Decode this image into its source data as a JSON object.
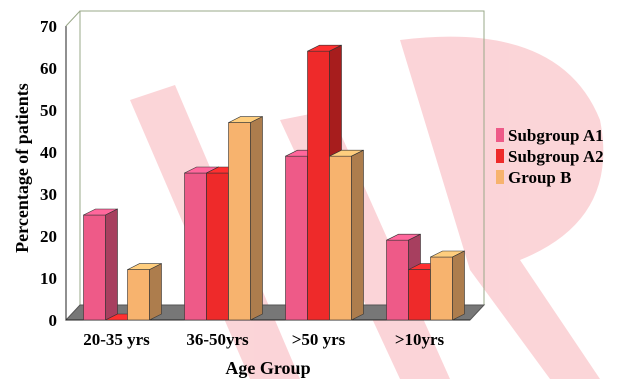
{
  "chart_data": {
    "type": "bar",
    "title": "",
    "xlabel": "Age Group",
    "ylabel": "Percentage of patients",
    "ylim": [
      0,
      70
    ],
    "yticks": [
      0,
      10,
      20,
      30,
      40,
      50,
      60,
      70
    ],
    "grid": false,
    "legend_position": "right",
    "categories": [
      "20-35 yrs",
      "36-50yrs",
      ">50 yrs",
      ">10yrs"
    ],
    "series": [
      {
        "name": "Subgroup A1",
        "values": [
          25,
          35,
          39,
          19
        ],
        "color": "#ee5a88"
      },
      {
        "name": "Subgroup A2",
        "values": [
          0,
          35,
          64,
          12
        ],
        "color": "#ee2a2a"
      },
      {
        "name": "Group B",
        "values": [
          12,
          47,
          39,
          15
        ],
        "color": "#f7b36e"
      }
    ]
  }
}
